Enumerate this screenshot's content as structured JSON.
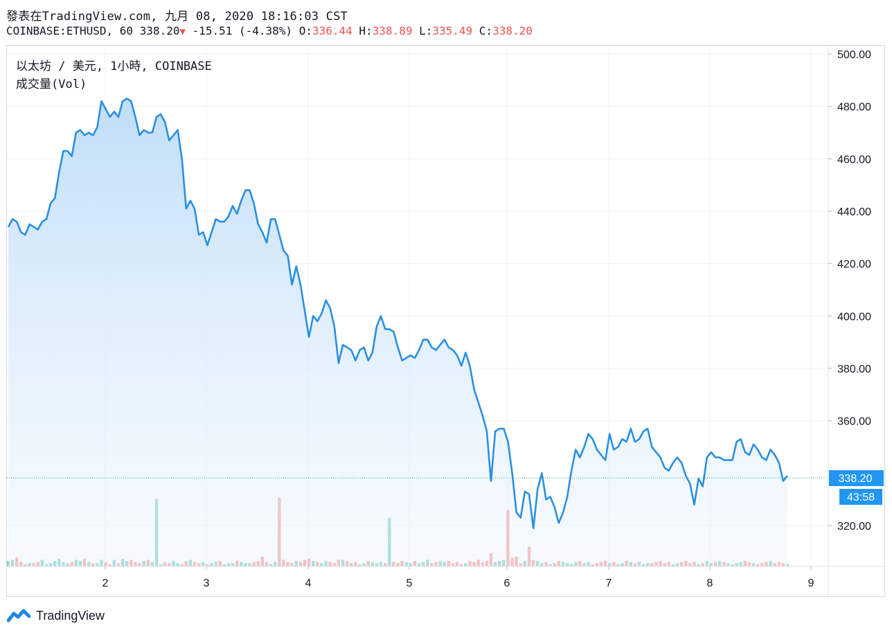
{
  "header": {
    "line1": "發表在TradingView.com, 九月 08, 2020 18:16:03 CST",
    "symbol": "COINBASE:ETHUSD, 60",
    "last": "338.20",
    "change": "-15.51 (-4.38%)",
    "o_label": "O:",
    "o_value": "336.44",
    "h_label": "H:",
    "h_value": "338.89",
    "l_label": "L:",
    "l_value": "335.49",
    "c_label": "C:",
    "c_value": "338.20"
  },
  "legend": {
    "title": "以太坊 / 美元, 1小時, COINBASE",
    "volume": "成交量(Vol)"
  },
  "footer": {
    "brand": "TradingView"
  },
  "colors": {
    "line": "#2a8fe0",
    "up": "#26a69a",
    "down": "#ef5350",
    "label_bg": "#2196f3"
  },
  "chart_data": {
    "type": "area",
    "ylim": [
      313,
      503
    ],
    "y_ticks": [
      "500.00",
      "480.00",
      "460.00",
      "440.00",
      "420.00",
      "400.00",
      "380.00",
      "360.00",
      "320.00"
    ],
    "x_ticks": [
      "2",
      "3",
      "4",
      "5",
      "6",
      "7",
      "8",
      "9"
    ],
    "price_label": "338.20",
    "countdown_label": "43:58",
    "series": [
      {
        "values": [
          434,
          437,
          436,
          432,
          431,
          435,
          434,
          433,
          436,
          437,
          443,
          445,
          455,
          463,
          463,
          461,
          470,
          471,
          469,
          470,
          469,
          472,
          482,
          479,
          476,
          478,
          476,
          482,
          483,
          482,
          476,
          469,
          471,
          470,
          470,
          476,
          477,
          474,
          467,
          469,
          471,
          460,
          441,
          444,
          441,
          431,
          432,
          427,
          432,
          437,
          436,
          436,
          438,
          442,
          439,
          444,
          448,
          448,
          443,
          435,
          432,
          428,
          437,
          437,
          431,
          425,
          423,
          412,
          419,
          412,
          402,
          392,
          400,
          398,
          401,
          406,
          403,
          396,
          382,
          389,
          388,
          387,
          383,
          387,
          388,
          383,
          386,
          396,
          400,
          395,
          395,
          394,
          388,
          383,
          384,
          385,
          384,
          387,
          391,
          391,
          388,
          387,
          389,
          391,
          388,
          387,
          385,
          381,
          386,
          381,
          372,
          367,
          362,
          356,
          337,
          356,
          357,
          357,
          352,
          340,
          325,
          323,
          333,
          332,
          319,
          334,
          340,
          330,
          331,
          327,
          321,
          325,
          331,
          341,
          349,
          346,
          350,
          355,
          353,
          349,
          347,
          345,
          355,
          349,
          350,
          353,
          352,
          357,
          352,
          353,
          356,
          357,
          350,
          348,
          346,
          342,
          341,
          344,
          346,
          344,
          339,
          336,
          328,
          338,
          335,
          346,
          348,
          346,
          346,
          345,
          345,
          345,
          352,
          353,
          348,
          347,
          351,
          349,
          346,
          345,
          349,
          347,
          344,
          337,
          339
        ]
      }
    ],
    "volume": [
      5,
      6,
      8,
      4,
      2,
      3,
      3,
      4,
      6,
      2,
      3,
      5,
      7,
      4,
      3,
      4,
      6,
      5,
      7,
      4,
      3,
      3,
      6,
      4,
      2,
      6,
      3,
      7,
      5,
      6,
      4,
      3,
      5,
      6,
      4,
      3,
      2,
      4,
      3,
      5,
      3,
      2,
      5,
      6,
      4,
      3,
      4,
      2,
      3,
      4,
      5,
      2,
      3,
      3,
      5,
      4,
      3,
      3,
      4,
      5,
      3,
      4,
      2,
      4,
      3,
      6,
      4,
      3,
      5,
      4,
      6,
      7,
      5,
      4,
      3,
      5,
      4,
      3,
      4,
      6,
      5,
      3,
      4,
      2,
      3,
      5,
      4,
      3,
      4,
      3,
      2,
      4,
      3,
      5,
      4,
      3,
      5,
      3,
      4,
      6,
      3,
      4,
      5,
      4,
      5,
      3,
      4,
      2,
      3,
      5,
      4,
      6,
      4,
      5,
      8,
      4,
      5,
      6,
      4,
      8,
      9,
      3,
      5,
      4,
      6,
      5,
      3,
      4,
      2,
      3,
      5,
      4,
      3,
      2,
      4,
      5,
      3,
      4,
      2,
      3,
      4,
      5,
      3,
      4,
      2,
      3,
      5,
      4,
      3,
      4,
      2,
      3,
      3,
      4,
      5,
      3,
      4,
      2,
      3,
      4,
      5,
      3,
      4,
      2,
      3,
      5,
      3,
      4,
      5,
      4,
      3,
      2,
      3,
      4,
      5,
      4,
      3,
      2,
      3,
      4,
      5,
      3,
      4,
      3,
      2
    ],
    "spikes": [
      [
        35,
        61
      ],
      [
        60,
        9
      ],
      [
        64,
        62
      ],
      [
        78,
        6
      ],
      [
        90,
        44
      ],
      [
        114,
        12
      ],
      [
        118,
        51
      ],
      [
        123,
        18
      ]
    ]
  }
}
